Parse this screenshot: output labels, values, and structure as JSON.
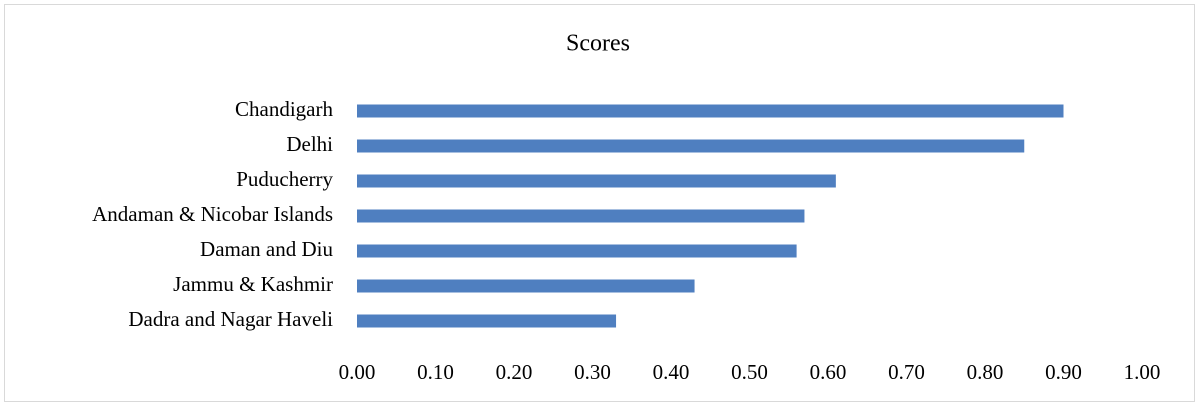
{
  "chart_data": {
    "type": "barh",
    "title": "Scores",
    "categories": [
      "Chandigarh",
      "Delhi",
      "Puducherry",
      "Andaman & Nicobar Islands",
      "Daman and Diu",
      "Jammu & Kashmir",
      "Dadra and Nagar Haveli"
    ],
    "values": [
      0.9,
      0.85,
      0.61,
      0.57,
      0.56,
      0.43,
      0.33
    ],
    "color": "#4f7fc0",
    "xlim": [
      0,
      1
    ],
    "xticks": [
      {
        "value": 0,
        "label": "0.00"
      },
      {
        "value": 0.1,
        "label": "0.10"
      },
      {
        "value": 0.2,
        "label": "0.20"
      },
      {
        "value": 0.3,
        "label": "0.30"
      },
      {
        "value": 0.4,
        "label": "0.40"
      },
      {
        "value": 0.5,
        "label": "0.50"
      },
      {
        "value": 0.6,
        "label": "0.60"
      },
      {
        "value": 0.7,
        "label": "0.70"
      },
      {
        "value": 0.8,
        "label": "0.80"
      },
      {
        "value": 0.9,
        "label": "0.90"
      },
      {
        "value": 1,
        "label": "1.00"
      }
    ],
    "grid": false
  }
}
